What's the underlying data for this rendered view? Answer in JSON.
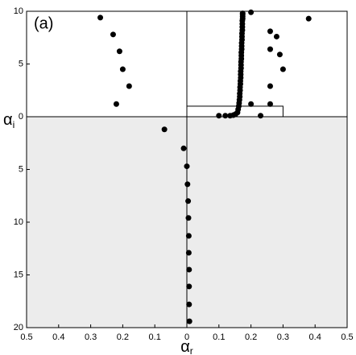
{
  "chart_data": {
    "type": "scatter",
    "panel_label": "(a)",
    "xlabel": {
      "symbol": "α",
      "subscript": "r"
    },
    "ylabel": {
      "symbol": "α",
      "subscript": "i"
    },
    "xlim": [
      -0.5,
      0.5
    ],
    "ylim": [
      -20,
      10
    ],
    "xticks": [
      {
        "value": -0.5,
        "label": "0.5"
      },
      {
        "value": -0.4,
        "label": "0.4"
      },
      {
        "value": -0.3,
        "label": "0.3"
      },
      {
        "value": -0.2,
        "label": "0.2"
      },
      {
        "value": -0.1,
        "label": "0.1"
      },
      0,
      0.1,
      0.2,
      0.3,
      0.4,
      0.5
    ],
    "yticks": [
      10,
      5,
      0,
      {
        "value": -5,
        "label": "5"
      },
      {
        "value": -10,
        "label": "10"
      },
      {
        "value": -15,
        "label": "15"
      },
      {
        "value": -20,
        "label": "20"
      }
    ],
    "box": {
      "x": [
        0,
        0.3
      ],
      "y": [
        0,
        1
      ]
    },
    "shade_color": "#ececec",
    "series": [
      {
        "color": "#000000",
        "x": [
          -0.27,
          -0.23,
          -0.21,
          -0.2,
          -0.18,
          -0.22,
          -0.07,
          -0.01,
          0,
          0.002,
          0.004,
          0.005,
          0.006,
          0.006,
          0.007,
          0.007,
          0.007,
          0.008,
          0.38,
          0.2,
          0.26,
          0.28,
          0.26,
          0.29,
          0.3,
          0.26,
          0.2,
          0.26,
          0.23,
          0.1,
          0.12,
          0.135,
          0.145,
          0.152,
          0.158,
          0.16,
          0.162,
          0.163,
          0.164,
          0.165,
          0.165,
          0.166,
          0.166,
          0.167,
          0.167,
          0.168,
          0.168,
          0.168,
          0.169,
          0.169,
          0.169,
          0.17,
          0.17,
          0.17,
          0.171,
          0.171,
          0.171,
          0.172,
          0.172,
          0.172,
          0.173,
          0.173,
          0.173,
          0.173,
          0.174,
          0.174,
          0.174,
          0.174
        ],
        "values": [
          9.4,
          7.8,
          6.2,
          4.5,
          2.9,
          1.2,
          -1.2,
          -3,
          -4.7,
          -6.4,
          -8,
          -9.6,
          -11.3,
          -12.9,
          -14.5,
          -16.1,
          -17.8,
          -19.4,
          9.3,
          9.9,
          8.1,
          7.6,
          6.4,
          5.9,
          4.5,
          2.9,
          1.2,
          1.2,
          0.1,
          0.1,
          0.1,
          0.1,
          0.15,
          0.25,
          0.4,
          0.7,
          1.0,
          1.3,
          1.6,
          1.9,
          2.2,
          2.5,
          2.8,
          3.1,
          3.4,
          3.7,
          4.0,
          4.3,
          4.6,
          4.9,
          5.2,
          5.5,
          5.8,
          6.1,
          6.4,
          6.7,
          7.0,
          7.3,
          7.6,
          7.9,
          8.2,
          8.5,
          8.8,
          9.1,
          9.3,
          9.5,
          9.7,
          9.8
        ]
      }
    ]
  }
}
